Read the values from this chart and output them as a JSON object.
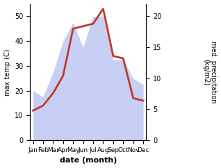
{
  "months": [
    "Jan",
    "Feb",
    "Mar",
    "Apr",
    "May",
    "Jun",
    "Jul",
    "Aug",
    "Sep",
    "Oct",
    "Nov",
    "Dec"
  ],
  "temp": [
    12,
    14,
    19,
    26,
    45,
    46,
    47,
    53,
    34,
    33,
    17,
    16
  ],
  "precip": [
    8,
    7,
    11,
    16,
    19,
    15,
    20,
    20,
    13,
    13,
    10,
    9
  ],
  "temp_color": "#c0392b",
  "precip_fill_color": "#c8cff5",
  "left_ylabel": "max temp (C)",
  "right_ylabel": "med. precipitation\n(kg/m2)",
  "xlabel": "date (month)",
  "left_ylim": [
    0,
    55
  ],
  "right_ylim": [
    0,
    22
  ],
  "left_yticks": [
    0,
    10,
    20,
    30,
    40,
    50
  ],
  "right_yticks": [
    0,
    5,
    10,
    15,
    20
  ],
  "figsize": [
    3.18,
    2.42
  ],
  "dpi": 100
}
